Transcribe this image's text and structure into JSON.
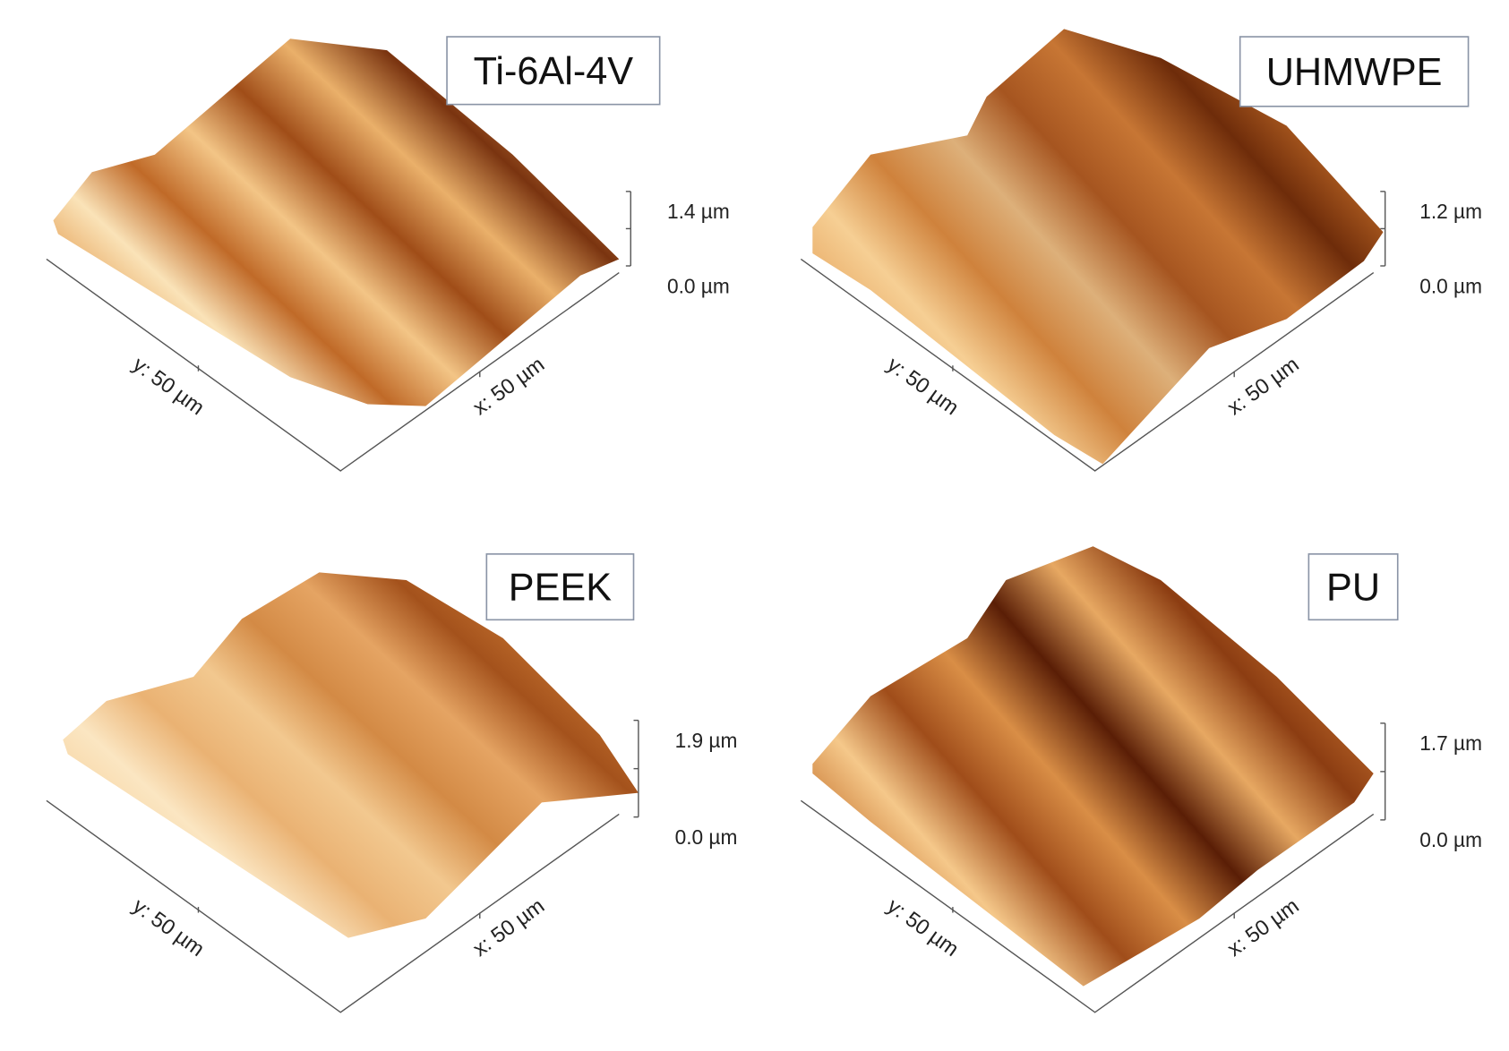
{
  "panels": [
    {
      "label": "Ti-6Al-4V",
      "z_max": "1.4 µm",
      "z_min": "0.0 µm",
      "y_axis": "y: 50 µm",
      "x_axis": "x: 50 µm"
    },
    {
      "label": "UHMWPE",
      "z_max": "1.2 µm",
      "z_min": "0.0 µm",
      "y_axis": "y: 50 µm",
      "x_axis": "x: 50 µm"
    },
    {
      "label": "PEEK",
      "z_max": "1.9 µm",
      "z_min": "0.0 µm",
      "y_axis": "y: 50 µm",
      "x_axis": "x: 50 µm"
    },
    {
      "label": "PU",
      "z_max": "1.7 µm",
      "z_min": "0.0 µm",
      "y_axis": "y: 50 µm",
      "x_axis": "x: 50 µm"
    }
  ]
}
